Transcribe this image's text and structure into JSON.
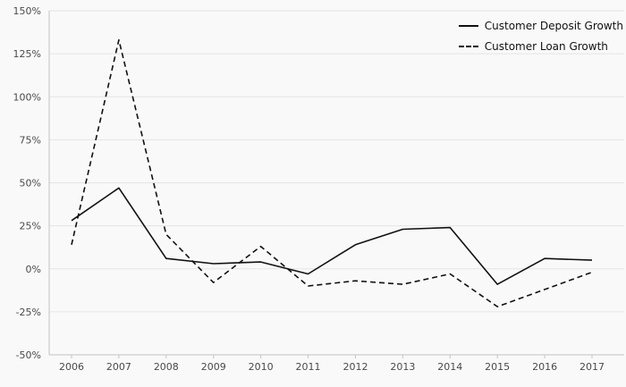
{
  "chart_data": {
    "type": "line",
    "title": "",
    "xlabel": "",
    "ylabel": "",
    "x": [
      2006,
      2007,
      2008,
      2009,
      2010,
      2011,
      2012,
      2013,
      2014,
      2015,
      2016,
      2017
    ],
    "x_labels": [
      "2006",
      "2007",
      "2008",
      "2009",
      "2010",
      "2011",
      "2012",
      "2013",
      "2014",
      "2015",
      "2016",
      "2017"
    ],
    "series": [
      {
        "name": "Customer Deposit Growth",
        "line_style": "solid",
        "color": "#111111",
        "values": [
          28,
          47,
          6,
          3,
          4,
          -3,
          14,
          23,
          24,
          -9,
          6,
          5
        ]
      },
      {
        "name": "Customer Loan Growth",
        "line_style": "dashed",
        "color": "#111111",
        "values": [
          14,
          133,
          20,
          -8,
          13,
          -10,
          -7,
          -9,
          -3,
          -22,
          -12,
          -2
        ]
      }
    ],
    "ylim": [
      -50,
      150
    ],
    "yticks": [
      -50,
      -25,
      0,
      25,
      50,
      75,
      100,
      125,
      150
    ],
    "ytick_labels": [
      "-50%",
      "-25%",
      "0%",
      "25%",
      "50%",
      "75%",
      "100%",
      "125%",
      "150%"
    ],
    "grid": "horizontal",
    "legend_position": "top-right",
    "colors": {
      "background": "#f9f9f9",
      "gridline": "#e4e4e4",
      "axis": "#c4c4c4",
      "tick_label": "#4a4a4a",
      "line": "#111111"
    }
  }
}
